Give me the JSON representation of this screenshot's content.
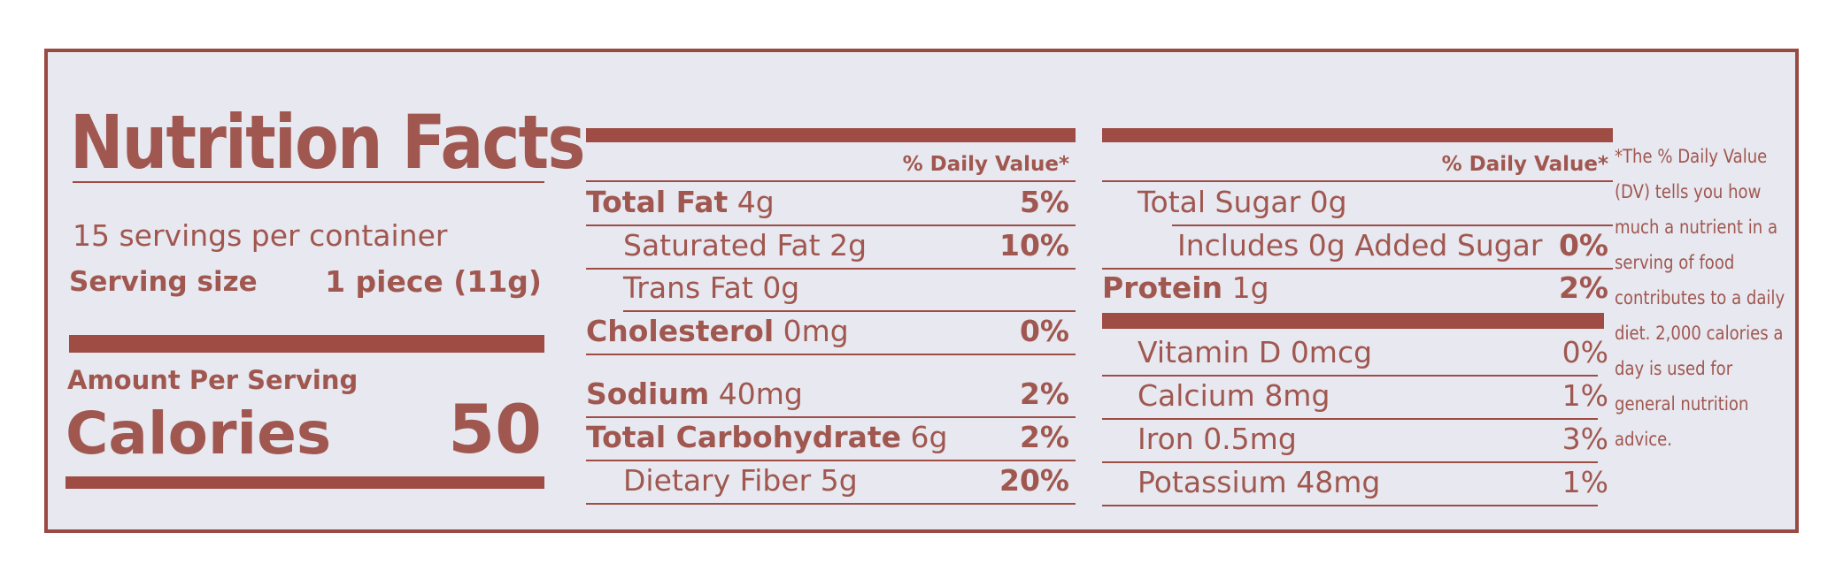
{
  "title": "Nutrition Facts",
  "servings": "15 servings per container",
  "serving_size_label": "Serving size",
  "serving_size_value": "1 piece (11g)",
  "amount_per_serving": "Amount Per Serving",
  "calories_label": "Calories",
  "calories_value": "50",
  "dv_header": "% Daily Value*",
  "col1": [
    {
      "name": "Total Fat",
      "amount": "4g",
      "dv": "5%"
    },
    {
      "name": "Saturated Fat",
      "amount": "2g",
      "dv": "10%"
    },
    {
      "name": "Trans Fat",
      "amount": "0g",
      "dv": ""
    },
    {
      "name": "Cholesterol",
      "amount": "0mg",
      "dv": "0%"
    },
    {
      "name": "Sodium",
      "amount": "40mg",
      "dv": "2%"
    },
    {
      "name": "Total Carbohydrate",
      "amount": "6g",
      "dv": "2%"
    },
    {
      "name": "Dietary Fiber",
      "amount": "5g",
      "dv": "20%"
    }
  ],
  "col2": [
    {
      "name": "Total Sugar",
      "amount": "0g",
      "dv": ""
    },
    {
      "name": "Includes 0g Added Sugar",
      "amount": "",
      "dv": "0%"
    },
    {
      "name": "Protein",
      "amount": "1g",
      "dv": "2%"
    },
    {
      "name": "Vitamin D",
      "amount": "0mcg",
      "dv": "0%"
    },
    {
      "name": "Calcium",
      "amount": "8mg",
      "dv": "1%"
    },
    {
      "name": "Iron",
      "amount": "0.5mg",
      "dv": "3%"
    },
    {
      "name": "Potassium",
      "amount": "48mg",
      "dv": "1%"
    }
  ],
  "footnote_lines": [
    "*The % Daily Value",
    "(DV) tells you how",
    "much a nutrient in a",
    "serving of food",
    "contributes to a daily",
    "diet. 2,000 calories a",
    "day is used for",
    "general nutrition",
    "advice."
  ],
  "colors": {
    "ink": "#a0574f",
    "rule": "#9f4c45",
    "panel": "#e7e8f0"
  }
}
